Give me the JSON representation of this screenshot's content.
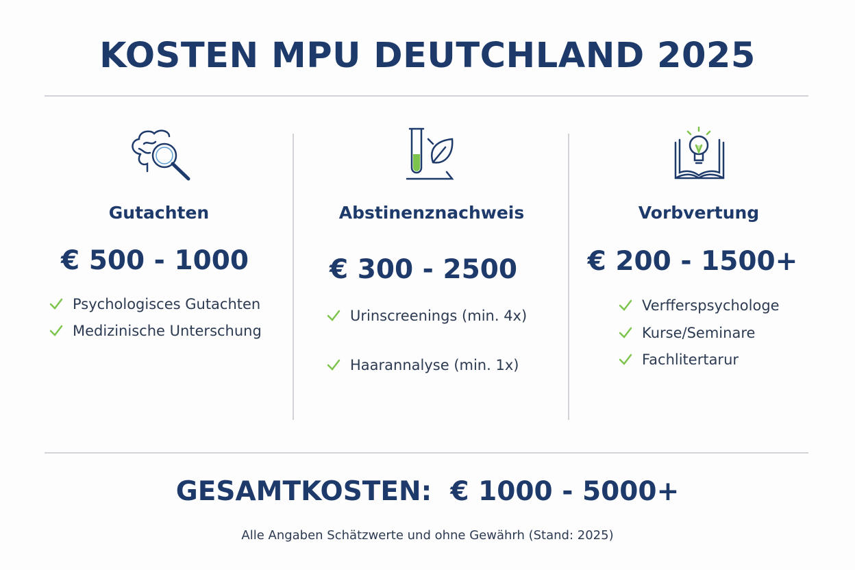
{
  "title": "KOSTEN MPU DEUTCHLAND 2025",
  "columns": [
    {
      "heading": "Gutachten",
      "price": "€ 500 - 1000",
      "items": [
        "Psychologisces Gutachten",
        "Medizinische Unterschung"
      ]
    },
    {
      "heading": "Abstinenznachweis",
      "price": "€ 300 - 2500",
      "items": [
        "Urinscreenings (min. 4x)",
        "Haarannalyse (min. 1x)"
      ]
    },
    {
      "heading": "Vorbvertung",
      "price": "€ 200 - 1500+",
      "items": [
        "Verfferspsychologe",
        "Kurse/Seminare",
        "Fachlitertarur"
      ]
    }
  ],
  "total": {
    "label": "GESAMTKOSTEN:",
    "value": "€ 1000 - 5000+"
  },
  "footnote": "Alle Angaben Schätzwerte und ohne Gewährh (Stand: 2025)"
}
